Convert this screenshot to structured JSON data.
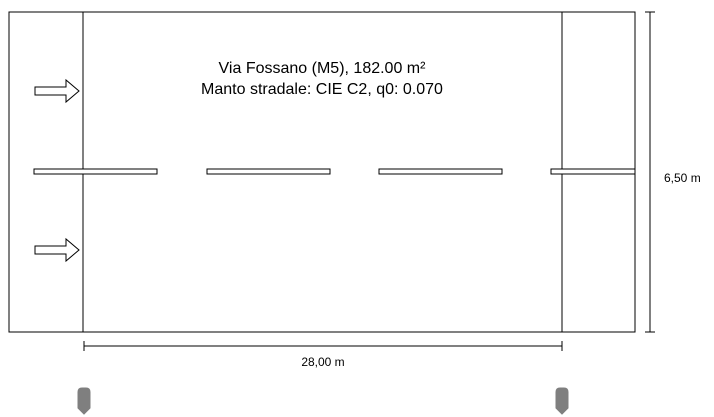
{
  "road": {
    "title_line1": "Via Fossano (M5), 182.00 m²",
    "title_line2": "Manto stradale: CIE C2, q0: 0.070"
  },
  "dimensions": {
    "width_label": "28,00 m",
    "height_label": "6,50 m"
  },
  "icons": {
    "traffic_arrow": "arrow-right-icon",
    "luminaire": "luminaire-icon"
  },
  "colors": {
    "stroke": "#000000",
    "luminaire_fill": "#7f7f7f"
  }
}
